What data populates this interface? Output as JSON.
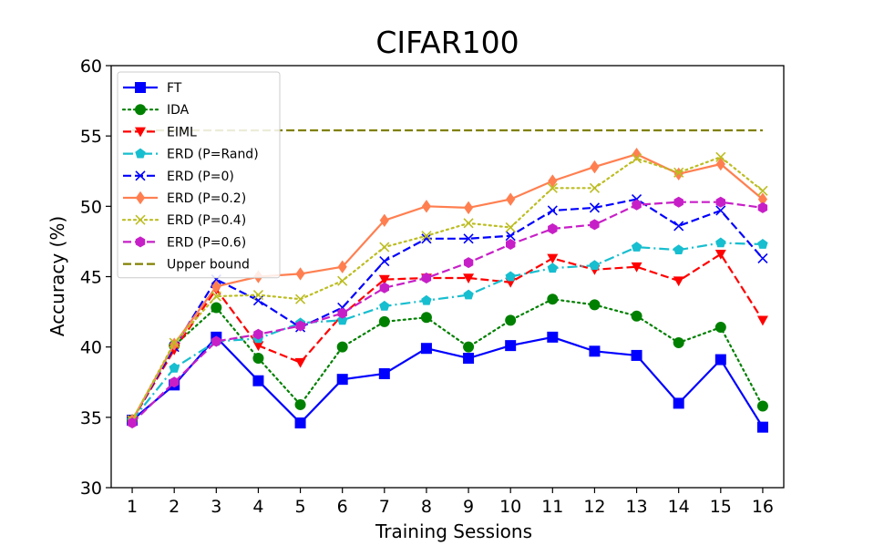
{
  "chart_data": {
    "type": "line",
    "title": "CIFAR100",
    "xlabel": "Training Sessions",
    "ylabel": "Accuracy (%)",
    "x": [
      1,
      2,
      3,
      4,
      5,
      6,
      7,
      8,
      9,
      10,
      11,
      12,
      13,
      14,
      15,
      16
    ],
    "xlim": [
      0.5,
      16.5
    ],
    "ylim": [
      30,
      60
    ],
    "yticks": [
      30,
      35,
      40,
      45,
      50,
      55,
      60
    ],
    "grid": false,
    "legend_position": "top-left",
    "series": [
      {
        "name": "FT",
        "color": "#0000ff",
        "dash": "solid",
        "marker": "square",
        "values": [
          34.8,
          37.3,
          40.7,
          37.6,
          34.6,
          37.7,
          38.1,
          39.9,
          39.2,
          40.1,
          40.7,
          39.7,
          39.4,
          36.0,
          39.1,
          34.3
        ]
      },
      {
        "name": "IDA",
        "color": "#008000",
        "dash": "dotted",
        "marker": "circle",
        "values": [
          34.8,
          40.1,
          42.8,
          39.2,
          35.9,
          40.0,
          41.8,
          42.1,
          40.0,
          41.9,
          43.4,
          43.0,
          42.2,
          40.3,
          41.4,
          35.8
        ]
      },
      {
        "name": "EIML",
        "color": "#ff0000",
        "dash": "dashed",
        "marker": "triangle-down",
        "values": [
          34.8,
          39.8,
          44.1,
          40.1,
          38.9,
          42.3,
          44.8,
          44.9,
          44.9,
          44.6,
          46.3,
          45.5,
          45.7,
          44.7,
          46.6,
          41.9
        ]
      },
      {
        "name": "ERD (P=Rand)",
        "color": "#17becf",
        "dash": "dashdot",
        "marker": "pentagon",
        "values": [
          34.8,
          38.5,
          40.4,
          40.6,
          41.7,
          41.9,
          42.9,
          43.3,
          43.7,
          45.0,
          45.6,
          45.8,
          47.1,
          46.9,
          47.4,
          47.3
        ]
      },
      {
        "name": "ERD (P=0)",
        "color": "#0000ff",
        "dash": "dashed",
        "marker": "x",
        "values": [
          34.8,
          40.0,
          44.8,
          43.3,
          41.4,
          42.8,
          46.1,
          47.7,
          47.7,
          47.9,
          49.7,
          49.9,
          50.5,
          48.6,
          49.7,
          46.3
        ]
      },
      {
        "name": "ERD (P=0.2)",
        "color": "#ff7f50",
        "dash": "solid",
        "marker": "diamond",
        "values": [
          34.8,
          40.2,
          44.3,
          45.0,
          45.2,
          45.7,
          49.0,
          50.0,
          49.9,
          50.5,
          51.8,
          52.8,
          53.7,
          52.3,
          53.0,
          50.5
        ]
      },
      {
        "name": "ERD (P=0.4)",
        "color": "#bcbd22",
        "dash": "dotted",
        "marker": "x",
        "values": [
          34.8,
          40.3,
          43.6,
          43.7,
          43.4,
          44.7,
          47.1,
          47.9,
          48.8,
          48.5,
          51.3,
          51.3,
          53.4,
          52.4,
          53.5,
          51.1
        ]
      },
      {
        "name": "ERD (P=0.6)",
        "color": "#c71fc7",
        "dash": "dashed",
        "marker": "hexagon",
        "values": [
          34.6,
          37.5,
          40.4,
          40.9,
          41.5,
          42.4,
          44.2,
          44.9,
          46.0,
          47.3,
          48.4,
          48.7,
          50.1,
          50.3,
          50.3,
          49.9
        ]
      },
      {
        "name": "Upper bound",
        "color": "#808000",
        "dash": "dashed",
        "marker": "none",
        "values": [
          55.4,
          55.4,
          55.4,
          55.4,
          55.4,
          55.4,
          55.4,
          55.4,
          55.4,
          55.4,
          55.4,
          55.4,
          55.4,
          55.4,
          55.4,
          55.4
        ]
      }
    ]
  }
}
